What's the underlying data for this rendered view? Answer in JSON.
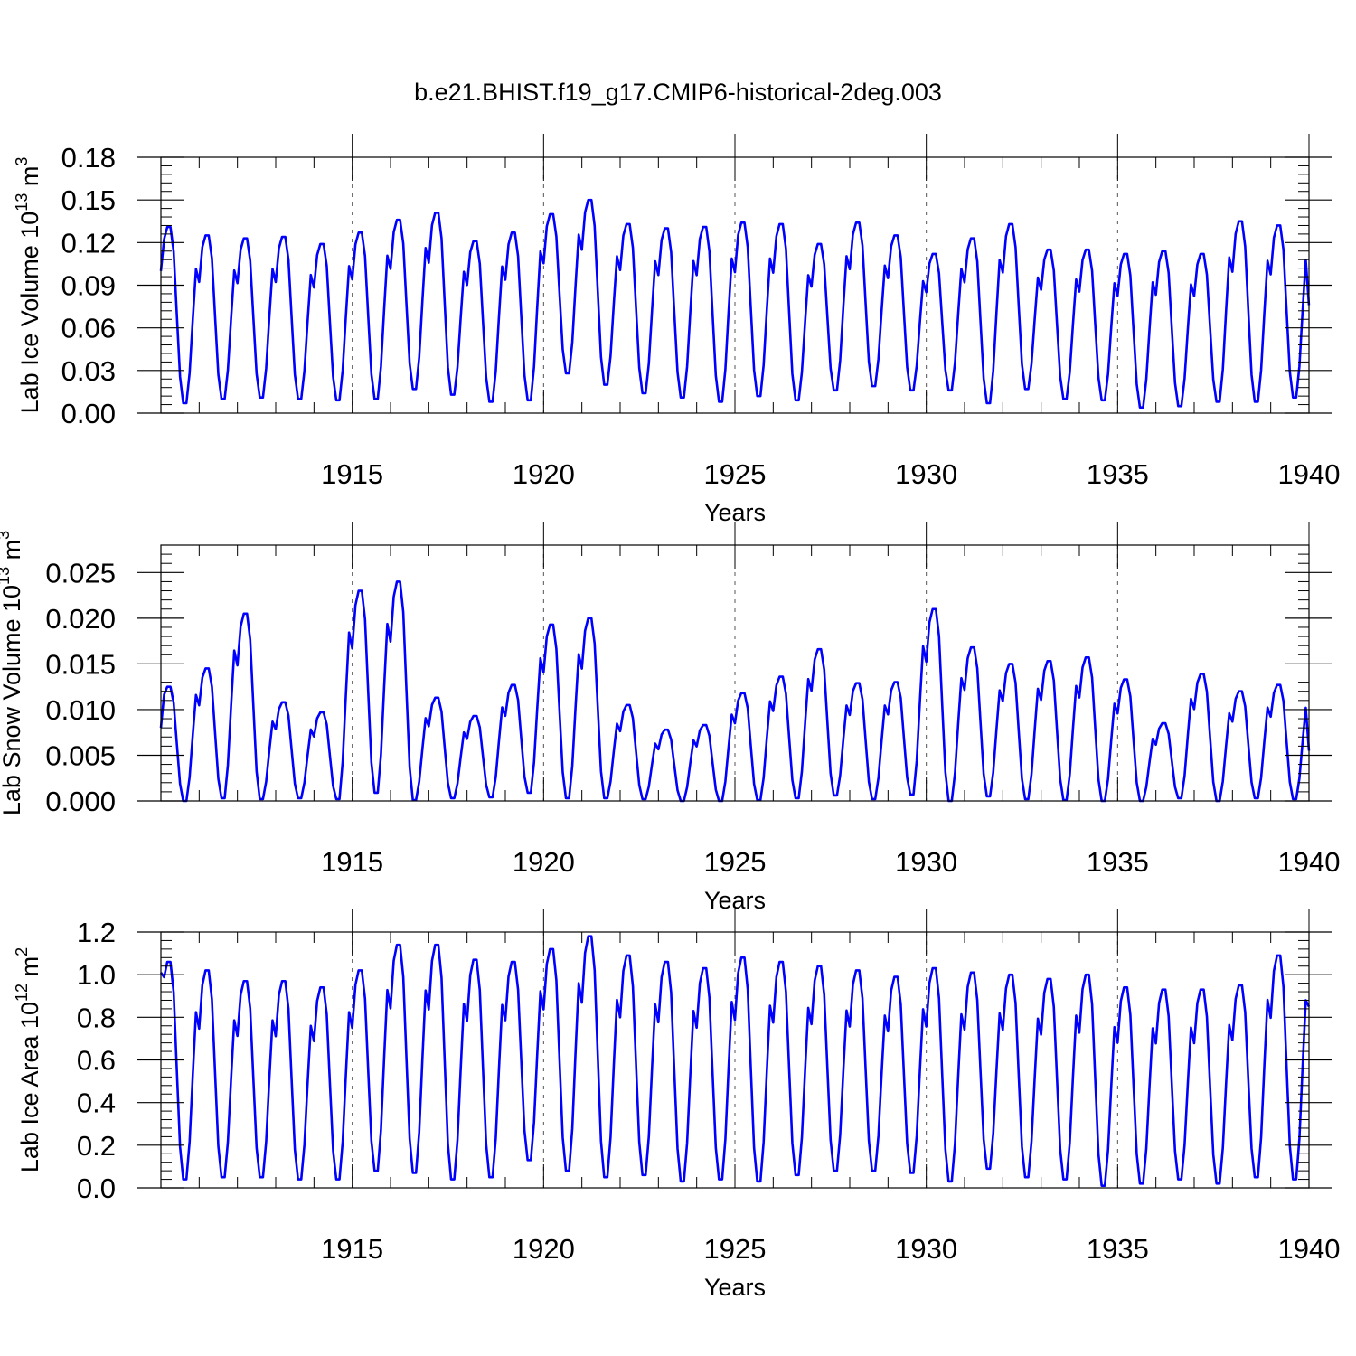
{
  "figure_title": "b.e21.BHIST.f19_g17.CMIP6-historical-2deg.003",
  "chart_data": [
    {
      "type": "line",
      "ylabel_main": "Lab Ice Volume 10",
      "ylabel_exp": "13",
      "ylabel_unit": " m",
      "ylabel_unit_exp": "3",
      "xlabel": "Years",
      "xlim": [
        1910.0,
        1940.0
      ],
      "ylim": [
        0.0,
        0.18
      ],
      "yticks": [
        0.0,
        0.03,
        0.06,
        0.09,
        0.12,
        0.15,
        0.18
      ],
      "ytick_labels": [
        "0.00",
        "0.03",
        "0.06",
        "0.09",
        "0.12",
        "0.15",
        "0.18"
      ],
      "ytick_minor": 0.006,
      "xticks": [
        1915,
        1920,
        1925,
        1930,
        1935,
        1940
      ],
      "xtick_labels": [
        "1915",
        "1920",
        "1925",
        "1930",
        "1935",
        "1940"
      ],
      "xtick_minor": 1,
      "color": "#0000ff",
      "start_year": 1910.0,
      "x_spacing": 0.08333,
      "annual_peaks": [
        0.131,
        0.125,
        0.123,
        0.124,
        0.119,
        0.127,
        0.136,
        0.141,
        0.121,
        0.127,
        0.14,
        0.15,
        0.133,
        0.13,
        0.131,
        0.134,
        0.133,
        0.119,
        0.134,
        0.125,
        0.112,
        0.123,
        0.133,
        0.115,
        0.115,
        0.112,
        0.114,
        0.112,
        0.135,
        0.132
      ],
      "annual_troughs": [
        0.007,
        0.01,
        0.011,
        0.01,
        0.009,
        0.01,
        0.017,
        0.013,
        0.008,
        0.009,
        0.028,
        0.02,
        0.014,
        0.011,
        0.008,
        0.012,
        0.009,
        0.016,
        0.019,
        0.016,
        0.016,
        0.007,
        0.017,
        0.01,
        0.009,
        0.004,
        0.005,
        0.008,
        0.008,
        0.011
      ],
      "start_value": 0.1,
      "end_value": 0.076
    },
    {
      "type": "line",
      "ylabel_main": "Lab Snow Volume 10",
      "ylabel_exp": "13",
      "ylabel_unit": " m",
      "ylabel_unit_exp": "3",
      "xlabel": "Years",
      "xlim": [
        1910.0,
        1940.0
      ],
      "ylim": [
        0.0,
        0.028
      ],
      "yticks": [
        0.0,
        0.005,
        0.01,
        0.015,
        0.02,
        0.025
      ],
      "ytick_labels": [
        "0.000",
        "0.005",
        "0.010",
        "0.015",
        "0.020",
        "0.025"
      ],
      "ytick_minor": 0.001,
      "xticks": [
        1915,
        1920,
        1925,
        1930,
        1935,
        1940
      ],
      "xtick_labels": [
        "1915",
        "1920",
        "1925",
        "1930",
        "1935",
        "1940"
      ],
      "xtick_minor": 1,
      "color": "#0000ff",
      "start_year": 1910.0,
      "x_spacing": 0.08333,
      "annual_peaks": [
        0.0125,
        0.0145,
        0.0205,
        0.0108,
        0.0097,
        0.023,
        0.024,
        0.0113,
        0.0093,
        0.0127,
        0.0193,
        0.02,
        0.0105,
        0.0078,
        0.0083,
        0.0118,
        0.0136,
        0.0166,
        0.0129,
        0.013,
        0.021,
        0.0168,
        0.015,
        0.0153,
        0.0157,
        0.0133,
        0.0085,
        0.0139,
        0.012,
        0.0127
      ],
      "annual_troughs": [
        0.0,
        0.0003,
        0.0002,
        0.0003,
        0.0002,
        0.0009,
        0.0001,
        0.0003,
        0.0004,
        0.0009,
        0.0003,
        0.0003,
        0.0002,
        0.0,
        0.0,
        0.0001,
        0.0003,
        0.0006,
        0.0002,
        0.0007,
        0.0,
        0.0005,
        0.0002,
        0.0001,
        0.0,
        0.0,
        0.0003,
        0.0,
        0.0003,
        0.0002
      ],
      "start_value": 0.008,
      "end_value": 0.0055
    },
    {
      "type": "line",
      "ylabel_main": "Lab Ice Area 10",
      "ylabel_exp": "12",
      "ylabel_unit": " m",
      "ylabel_unit_exp": "2",
      "xlabel": "Years",
      "xlim": [
        1910.0,
        1940.0
      ],
      "ylim": [
        0.0,
        1.2
      ],
      "yticks": [
        0.0,
        0.2,
        0.4,
        0.6,
        0.8,
        1.0,
        1.2
      ],
      "ytick_labels": [
        "0.0",
        "0.2",
        "0.4",
        "0.6",
        "0.8",
        "1.0",
        "1.2"
      ],
      "ytick_minor": 0.04,
      "xticks": [
        1915,
        1920,
        1925,
        1930,
        1935,
        1940
      ],
      "xtick_labels": [
        "1915",
        "1920",
        "1925",
        "1930",
        "1935",
        "1940"
      ],
      "xtick_minor": 1,
      "color": "#0000ff",
      "start_year": 1910.0,
      "x_spacing": 0.08333,
      "annual_peaks": [
        1.06,
        1.02,
        0.97,
        0.97,
        0.94,
        1.02,
        1.14,
        1.14,
        1.07,
        1.06,
        1.12,
        1.18,
        1.09,
        1.06,
        1.03,
        1.08,
        1.06,
        1.04,
        1.02,
        0.99,
        1.03,
        1.01,
        1.0,
        0.98,
        1.0,
        0.94,
        0.93,
        0.93,
        0.95,
        1.09
      ],
      "annual_troughs": [
        0.04,
        0.05,
        0.05,
        0.04,
        0.04,
        0.08,
        0.07,
        0.04,
        0.05,
        0.13,
        0.08,
        0.05,
        0.06,
        0.03,
        0.04,
        0.03,
        0.06,
        0.08,
        0.08,
        0.07,
        0.03,
        0.09,
        0.05,
        0.04,
        0.01,
        0.02,
        0.04,
        0.02,
        0.05,
        0.04
      ],
      "start_value": 1.01,
      "end_value": 0.85
    }
  ]
}
